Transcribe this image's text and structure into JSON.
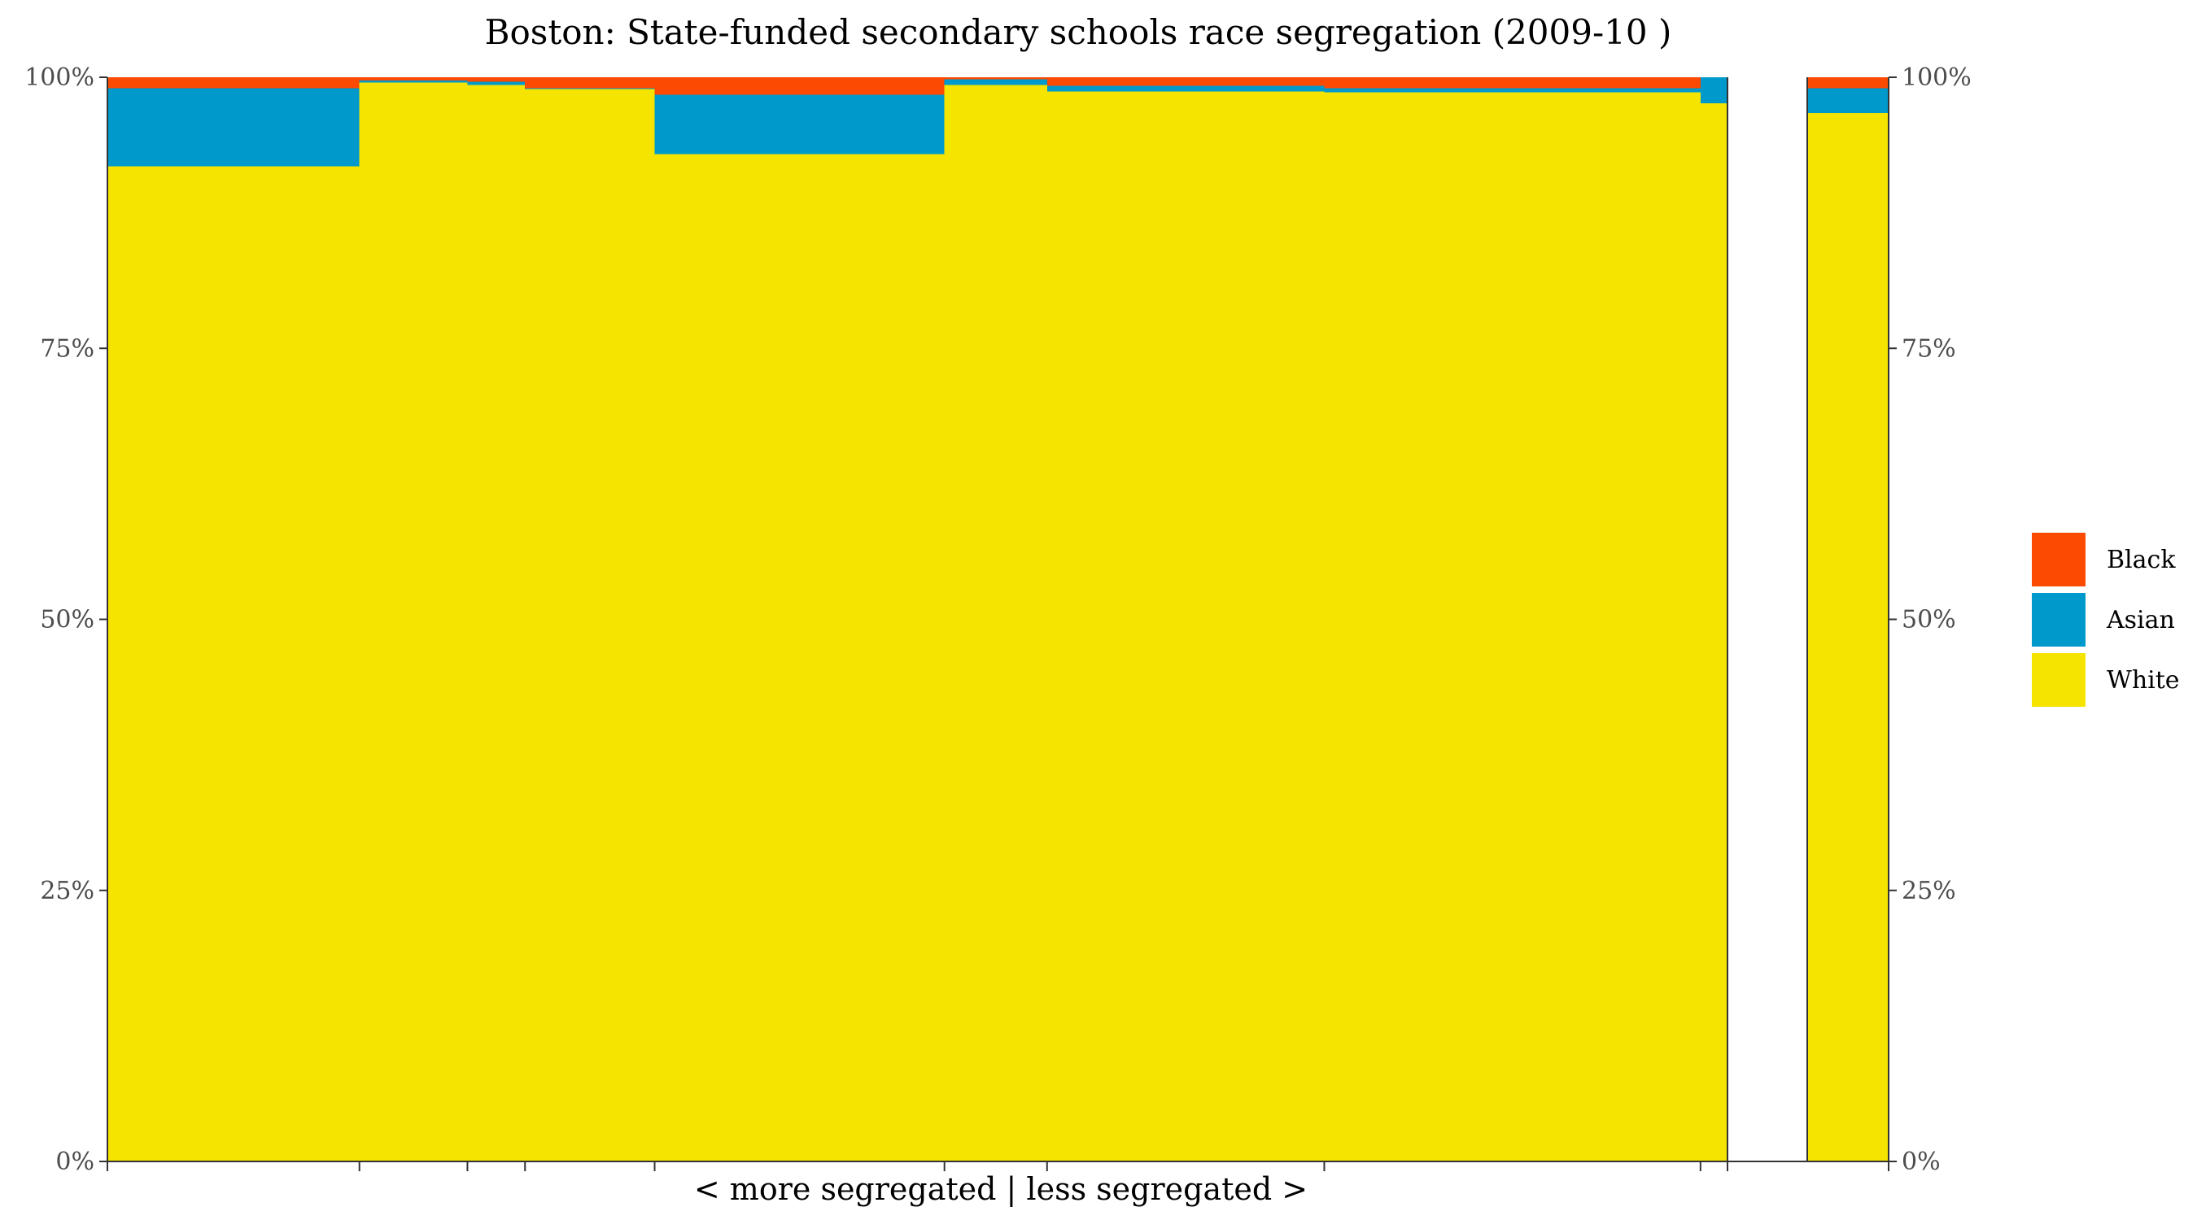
{
  "chart_data": {
    "type": "bar",
    "subtype": "stacked-variable-width",
    "title": "Boston: State-funded secondary schools race segregation (2009-10 )",
    "xlabel": "< more segregated | less segregated >",
    "ylabel": "",
    "ylim": [
      0,
      100
    ],
    "y_ticks": [
      "0%",
      "25%",
      "50%",
      "75%",
      "100%"
    ],
    "y_tick_values": [
      0,
      25,
      50,
      75,
      100
    ],
    "secondary_y_axis": true,
    "grid": false,
    "legend_position": "right",
    "series": [
      {
        "name": "Black",
        "color": "#fc4a02"
      },
      {
        "name": "Asian",
        "color": "#0099cc"
      },
      {
        "name": "White",
        "color": "#f5e400"
      }
    ],
    "schools": [
      {
        "share": 14.0,
        "values": {
          "White": 91.8,
          "Asian": 7.2,
          "Black": 1.0
        }
      },
      {
        "share": 6.0,
        "values": {
          "White": 99.5,
          "Asian": 0.2,
          "Black": 0.3
        }
      },
      {
        "share": 3.2,
        "values": {
          "White": 99.3,
          "Asian": 0.3,
          "Black": 0.4
        }
      },
      {
        "share": 7.2,
        "values": {
          "White": 98.9,
          "Asian": 0.1,
          "Black": 1.0
        }
      },
      {
        "share": 16.1,
        "values": {
          "White": 92.9,
          "Asian": 5.5,
          "Black": 1.6
        }
      },
      {
        "share": 5.7,
        "values": {
          "White": 99.3,
          "Asian": 0.5,
          "Black": 0.2
        }
      },
      {
        "share": 15.4,
        "values": {
          "White": 98.7,
          "Asian": 0.5,
          "Black": 0.8
        }
      },
      {
        "share": 20.9,
        "values": {
          "White": 98.6,
          "Asian": 0.4,
          "Black": 1.0
        }
      },
      {
        "share": 1.5,
        "values": {
          "White": 97.6,
          "Asian": 2.4,
          "Black": 0.0
        }
      }
    ],
    "aggregate": {
      "values": {
        "White": 96.7,
        "Asian": 2.3,
        "Black": 1.0
      }
    },
    "stack_order": [
      "White",
      "Asian",
      "Black"
    ]
  }
}
